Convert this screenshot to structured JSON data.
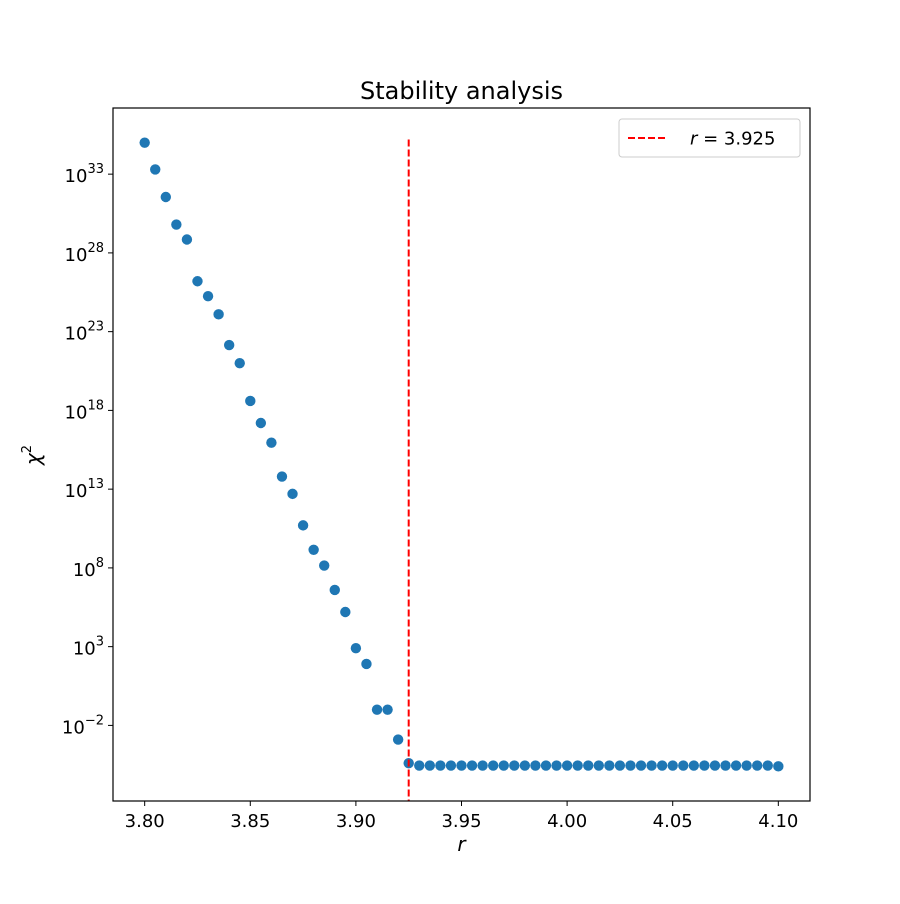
{
  "chart_data": {
    "type": "scatter",
    "title": "Stability analysis",
    "xlabel": "r",
    "ylabel": "χ",
    "ylabel_superscript": "2",
    "xlim": [
      3.785,
      4.115
    ],
    "ylog_lim": [
      -6.8,
      37.2
    ],
    "yscale": "log",
    "x_ticks": [
      3.8,
      3.85,
      3.9,
      3.95,
      4.0,
      4.05,
      4.1
    ],
    "x_tick_labels": [
      "3.80",
      "3.85",
      "3.90",
      "3.95",
      "4.00",
      "4.05",
      "4.10"
    ],
    "y_ticks": [
      {
        "exp": 33,
        "base": "10",
        "label": "33"
      },
      {
        "exp": 28,
        "base": "10",
        "label": "28"
      },
      {
        "exp": 23,
        "base": "10",
        "label": "23"
      },
      {
        "exp": 18,
        "base": "10",
        "label": "18"
      },
      {
        "exp": 13,
        "base": "10",
        "label": "13"
      },
      {
        "exp": 8,
        "base": "10",
        "label": "8"
      },
      {
        "exp": 3,
        "base": "10",
        "label": "3"
      },
      {
        "exp": -2,
        "base": "10",
        "label": "−2"
      }
    ],
    "marker_color": "#1f77b4",
    "series": [
      {
        "x": [
          3.8,
          3.805,
          3.81,
          3.815,
          3.82,
          3.825,
          3.83,
          3.835,
          3.84,
          3.845,
          3.85,
          3.855,
          3.86,
          3.865,
          3.87,
          3.875,
          3.88,
          3.885,
          3.89,
          3.895,
          3.9,
          3.905,
          3.91,
          3.915,
          3.92,
          3.925,
          3.93,
          3.935,
          3.94,
          3.945,
          3.95,
          3.955,
          3.96,
          3.965,
          3.97,
          3.975,
          3.98,
          3.985,
          3.99,
          3.995,
          4.0,
          4.005,
          4.01,
          4.015,
          4.02,
          4.025,
          4.03,
          4.035,
          4.04,
          4.045,
          4.05,
          4.055,
          4.06,
          4.065,
          4.07,
          4.075,
          4.08,
          4.085,
          4.09,
          4.095,
          4.1
        ],
        "y_log10": [
          35.0,
          33.3,
          31.55,
          29.8,
          28.85,
          26.2,
          25.25,
          24.1,
          22.15,
          21.0,
          18.6,
          17.2,
          15.95,
          13.8,
          12.7,
          10.7,
          9.15,
          8.15,
          6.6,
          5.2,
          2.9,
          1.9,
          -1.0,
          -1.0,
          -2.9,
          -4.4,
          -4.55,
          -4.55,
          -4.55,
          -4.55,
          -4.55,
          -4.55,
          -4.55,
          -4.55,
          -4.55,
          -4.55,
          -4.55,
          -4.55,
          -4.55,
          -4.55,
          -4.55,
          -4.55,
          -4.55,
          -4.55,
          -4.55,
          -4.55,
          -4.55,
          -4.55,
          -4.55,
          -4.55,
          -4.55,
          -4.55,
          -4.55,
          -4.55,
          -4.55,
          -4.55,
          -4.55,
          -4.55,
          -4.55,
          -4.55,
          -4.6
        ]
      }
    ],
    "vline": {
      "x": 3.925,
      "color": "#ff0000",
      "style": "dashed",
      "ylog_range": [
        -6.8,
        35.2
      ]
    },
    "legend": {
      "placement": "top-right",
      "entry_symbol": "r",
      "entry_text": " = 3.925",
      "color": "#ff0000"
    },
    "grid": false
  }
}
